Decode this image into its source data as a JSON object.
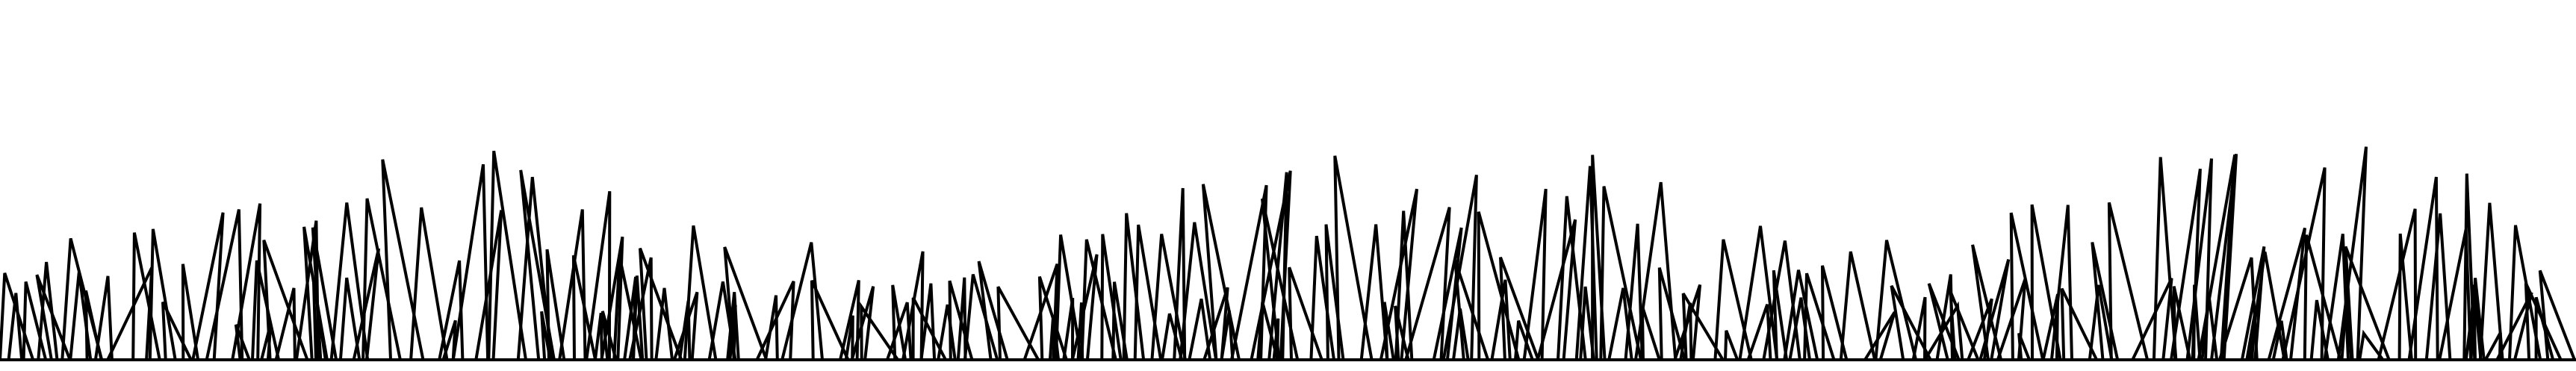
{
  "scene": {
    "subject": "grass-blades",
    "stroke_color": "#000000",
    "background_color": "#ffffff"
  }
}
